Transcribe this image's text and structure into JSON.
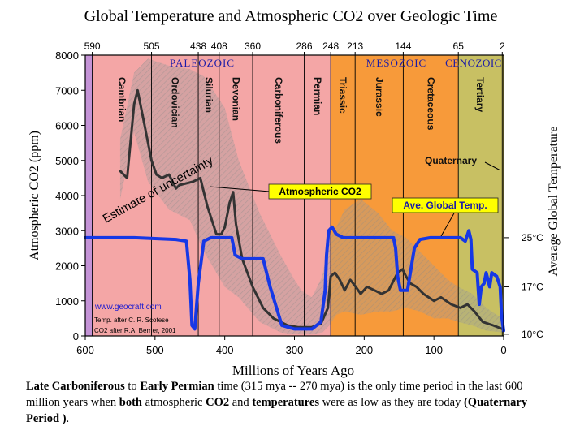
{
  "chart_data": {
    "type": "line",
    "title": "Global Temperature and Atmospheric CO2 over Geologic Time",
    "xlabel": "Millions of Years Ago",
    "ylabel": "Atmospheric CO2 (ppm)",
    "y2label": "Average Global Temperature",
    "xlim": [
      600,
      0
    ],
    "ylim": [
      0,
      8000
    ],
    "x_ticks": [
      "600",
      "500",
      "400",
      "300",
      "200",
      "100",
      "0"
    ],
    "y_ticks": [
      "0",
      "1000",
      "2000",
      "3000",
      "4000",
      "5000",
      "6000",
      "7000",
      "8000"
    ],
    "y2_ticks": [
      {
        "label": "25°C",
        "co2_equiv": 2800
      },
      {
        "label": "17°C",
        "co2_equiv": 1400
      },
      {
        "label": "10°C",
        "co2_equiv": 50
      }
    ],
    "top_ages": [
      "590",
      "505",
      "438",
      "408",
      "360",
      "286",
      "248",
      "213",
      "144",
      "65",
      "2"
    ],
    "eras": [
      "PALEOZOIC",
      "MESOZOIC",
      "CENOZOIC"
    ],
    "periods": [
      {
        "name": "Cambrian",
        "start": 590,
        "end": 505,
        "color": "#f4a6a6"
      },
      {
        "name": "Ordovician",
        "start": 505,
        "end": 438,
        "color": "#f4a6a6"
      },
      {
        "name": "Silurian",
        "start": 438,
        "end": 408,
        "color": "#f4a6a6"
      },
      {
        "name": "Devonian",
        "start": 408,
        "end": 360,
        "color": "#f4a6a6"
      },
      {
        "name": "Carboniferous",
        "start": 360,
        "end": 286,
        "color": "#f4a6a6"
      },
      {
        "name": "Permian",
        "start": 286,
        "end": 248,
        "color": "#f4a6a6"
      },
      {
        "name": "Triassic",
        "start": 248,
        "end": 213,
        "color": "#f79a3a"
      },
      {
        "name": "Jurassic",
        "start": 213,
        "end": 144,
        "color": "#f79a3a"
      },
      {
        "name": "Cretaceous",
        "start": 144,
        "end": 65,
        "color": "#f79a3a"
      },
      {
        "name": "Tertiary",
        "start": 65,
        "end": 2,
        "color": "#c8c063"
      },
      {
        "name": "Quaternary",
        "start": 2,
        "end": 0,
        "color": "#c8c063"
      }
    ],
    "precambrian_color": "#c493d6",
    "series": [
      {
        "name": "Atmospheric CO2",
        "color": "#333333",
        "points": [
          [
            550,
            4700
          ],
          [
            540,
            4500
          ],
          [
            530,
            6600
          ],
          [
            525,
            7000
          ],
          [
            515,
            6000
          ],
          [
            505,
            5000
          ],
          [
            498,
            4600
          ],
          [
            490,
            4500
          ],
          [
            480,
            4600
          ],
          [
            470,
            4200
          ],
          [
            465,
            4300
          ],
          [
            455,
            4350
          ],
          [
            445,
            4400
          ],
          [
            435,
            4500
          ],
          [
            425,
            3700
          ],
          [
            412,
            2900
          ],
          [
            405,
            2900
          ],
          [
            400,
            3100
          ],
          [
            393,
            3800
          ],
          [
            388,
            4100
          ],
          [
            384,
            3200
          ],
          [
            375,
            2200
          ],
          [
            360,
            1400
          ],
          [
            345,
            800
          ],
          [
            330,
            500
          ],
          [
            310,
            300
          ],
          [
            295,
            250
          ],
          [
            275,
            250
          ],
          [
            262,
            350
          ],
          [
            252,
            800
          ],
          [
            248,
            1700
          ],
          [
            242,
            1800
          ],
          [
            235,
            1600
          ],
          [
            228,
            1300
          ],
          [
            220,
            1600
          ],
          [
            212,
            1400
          ],
          [
            205,
            1200
          ],
          [
            196,
            1400
          ],
          [
            185,
            1300
          ],
          [
            175,
            1200
          ],
          [
            165,
            1300
          ],
          [
            152,
            1800
          ],
          [
            145,
            1900
          ],
          [
            140,
            1700
          ],
          [
            134,
            1500
          ],
          [
            125,
            1400
          ],
          [
            115,
            1200
          ],
          [
            100,
            1000
          ],
          [
            90,
            1100
          ],
          [
            75,
            900
          ],
          [
            62,
            800
          ],
          [
            52,
            900
          ],
          [
            42,
            700
          ],
          [
            30,
            400
          ],
          [
            15,
            300
          ],
          [
            2,
            200
          ]
        ]
      },
      {
        "name": "Ave. Global Temp.",
        "color": "#1638e6",
        "points": [
          [
            600,
            2800
          ],
          [
            530,
            2800
          ],
          [
            470,
            2750
          ],
          [
            455,
            2700
          ],
          [
            450,
            1600
          ],
          [
            447,
            300
          ],
          [
            443,
            200
          ],
          [
            438,
            1500
          ],
          [
            430,
            2700
          ],
          [
            420,
            2800
          ],
          [
            390,
            2800
          ],
          [
            385,
            2300
          ],
          [
            375,
            2200
          ],
          [
            345,
            2200
          ],
          [
            335,
            1400
          ],
          [
            318,
            300
          ],
          [
            300,
            200
          ],
          [
            275,
            200
          ],
          [
            262,
            400
          ],
          [
            256,
            1300
          ],
          [
            254,
            2300
          ],
          [
            251,
            3000
          ],
          [
            246,
            3100
          ],
          [
            240,
            2900
          ],
          [
            230,
            2800
          ],
          [
            180,
            2800
          ],
          [
            158,
            2800
          ],
          [
            155,
            2500
          ],
          [
            152,
            1700
          ],
          [
            148,
            1300
          ],
          [
            138,
            1300
          ],
          [
            128,
            2500
          ],
          [
            120,
            2750
          ],
          [
            105,
            2800
          ],
          [
            62,
            2800
          ],
          [
            55,
            2700
          ],
          [
            50,
            3000
          ],
          [
            47,
            2750
          ],
          [
            45,
            1900
          ],
          [
            38,
            1800
          ],
          [
            35,
            900
          ],
          [
            32,
            1400
          ],
          [
            28,
            1500
          ],
          [
            25,
            1800
          ],
          [
            20,
            1400
          ],
          [
            17,
            1800
          ],
          [
            10,
            1700
          ],
          [
            5,
            1400
          ],
          [
            3,
            600
          ],
          [
            1,
            300
          ],
          [
            0,
            150
          ]
        ]
      }
    ],
    "uncertainty_band": {
      "upper": [
        [
          550,
          5600
        ],
        [
          530,
          7500
        ],
        [
          510,
          7900
        ],
        [
          480,
          7700
        ],
        [
          450,
          7600
        ],
        [
          430,
          7400
        ],
        [
          400,
          6500
        ],
        [
          380,
          5000
        ],
        [
          350,
          3500
        ],
        [
          320,
          2300
        ],
        [
          300,
          1600
        ],
        [
          290,
          1300
        ],
        [
          275,
          1100
        ],
        [
          260,
          1700
        ],
        [
          250,
          2800
        ],
        [
          240,
          3100
        ],
        [
          228,
          3600
        ],
        [
          205,
          3900
        ],
        [
          180,
          3500
        ],
        [
          160,
          3000
        ],
        [
          140,
          2800
        ],
        [
          120,
          2400
        ],
        [
          100,
          2000
        ],
        [
          80,
          1600
        ],
        [
          65,
          1400
        ],
        [
          45,
          1200
        ],
        [
          25,
          800
        ],
        [
          2,
          500
        ]
      ],
      "lower": [
        [
          550,
          3900
        ],
        [
          530,
          5800
        ],
        [
          510,
          4400
        ],
        [
          480,
          3600
        ],
        [
          450,
          3300
        ],
        [
          430,
          2400
        ],
        [
          400,
          1400
        ],
        [
          380,
          1100
        ],
        [
          350,
          400
        ],
        [
          320,
          100
        ],
        [
          300,
          50
        ],
        [
          290,
          50
        ],
        [
          275,
          50
        ],
        [
          260,
          100
        ],
        [
          250,
          300
        ],
        [
          240,
          600
        ],
        [
          228,
          700
        ],
        [
          205,
          600
        ],
        [
          180,
          700
        ],
        [
          160,
          700
        ],
        [
          140,
          800
        ],
        [
          120,
          700
        ],
        [
          100,
          500
        ],
        [
          80,
          500
        ],
        [
          65,
          400
        ],
        [
          45,
          300
        ],
        [
          25,
          150
        ],
        [
          2,
          100
        ]
      ]
    },
    "annotations": {
      "uncertainty": "Estimate of uncertainty",
      "co2_label": "Atmospheric CO2",
      "temp_label": "Ave. Global Temp.",
      "quaternary_label": "Quaternary",
      "website": "www.geocraft.com",
      "credit_temp": "Temp. after C. R. Scotese",
      "credit_co2": "CO2 after R.A. Berner, 2001"
    }
  },
  "caption": {
    "p1_bold": "Late Carboniferous",
    "p2": " to ",
    "p3_bold": "Early Permian",
    "p4": " time (315 mya -- 270 mya) is the only time period in the last 600 million years when ",
    "p5_bold": "both",
    "p6": " atmospheric ",
    "p7_bold": "CO2",
    "p8": " and ",
    "p9_bold": "temperatures",
    "p10": " were as low as they are today ",
    "p11_bold": "(Quaternary Period )",
    "p12": "."
  }
}
